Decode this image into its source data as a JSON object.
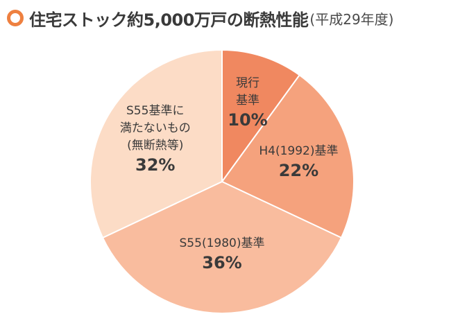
{
  "title": {
    "main": "住宅ストック約5,000万戸の断熱性能",
    "sub": "(平成29年度)",
    "accent_color": "#ee8040"
  },
  "chart_data": {
    "type": "pie",
    "start": "12 o'clock",
    "direction": "clockwise",
    "slices": [
      {
        "label_lines": [
          "現行",
          "基準"
        ],
        "value": 10,
        "value_label": "10%",
        "color": "#f08860"
      },
      {
        "label_lines": [
          "H4(1992)基準"
        ],
        "value": 22,
        "value_label": "22%",
        "color": "#f5a27d"
      },
      {
        "label_lines": [
          "S55(1980)基準"
        ],
        "value": 36,
        "value_label": "36%",
        "color": "#f9bc9e"
      },
      {
        "label_lines": [
          "S55基準に",
          "満たないもの",
          "(無断熱等)"
        ],
        "value": 32,
        "value_label": "32%",
        "color": "#fcdcc6"
      }
    ]
  }
}
